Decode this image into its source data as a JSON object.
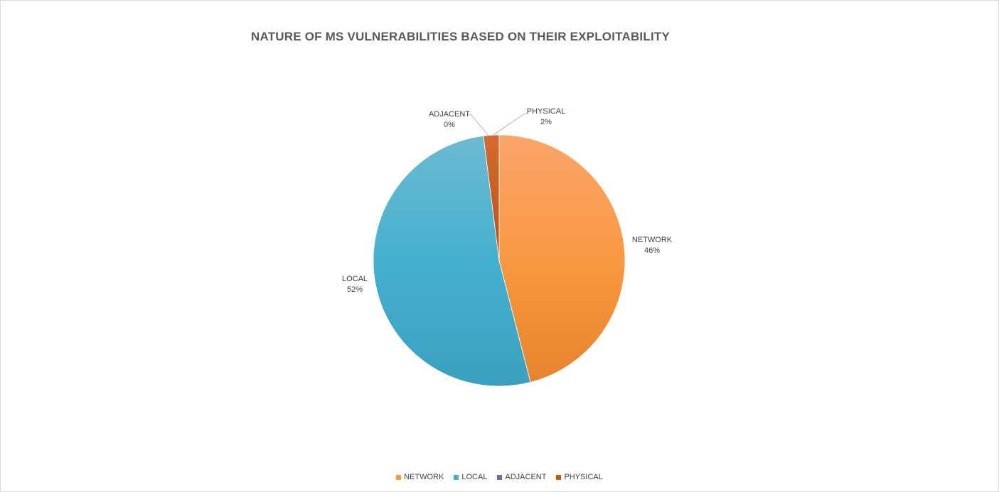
{
  "chart_data": {
    "type": "pie",
    "title": "NATURE OF MS VULNERABILITIES BASED ON THEIR EXPLOITABILITY",
    "slices": [
      {
        "label": "NETWORK",
        "value": 46,
        "display": "46%",
        "color": "#f79646"
      },
      {
        "label": "LOCAL",
        "value": 52,
        "display": "52%",
        "color": "#4bacc6"
      },
      {
        "label": "ADJACENT",
        "value": 0,
        "display": "0%",
        "color": "#8064a2"
      },
      {
        "label": "PHYSICAL",
        "value": 2,
        "display": "2%",
        "color": "#c55a11"
      }
    ],
    "legend_position": "bottom",
    "start_angle_deg": 0,
    "direction": "clockwise"
  }
}
